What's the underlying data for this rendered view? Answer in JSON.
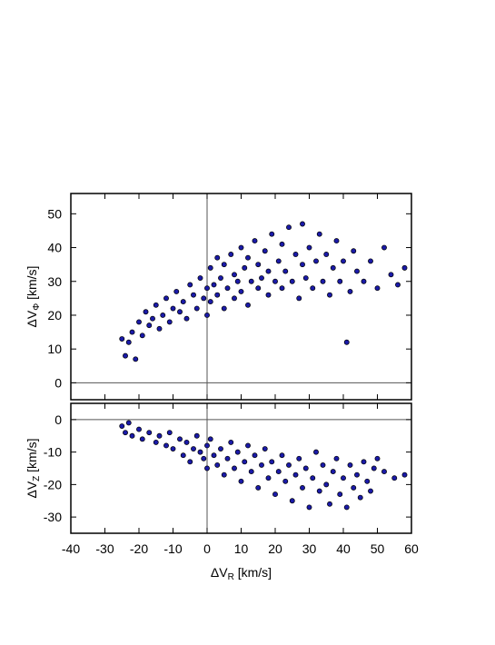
{
  "chart_data": [
    {
      "type": "scatter",
      "ylabel": [
        "ΔV",
        "Φ",
        " [km/s]"
      ],
      "xlim": [
        -40,
        60
      ],
      "xticks": [
        -40,
        -30,
        -20,
        -10,
        0,
        10,
        20,
        30,
        40,
        50,
        60
      ],
      "ylim": [
        -5,
        56
      ],
      "yticks": [
        0,
        10,
        20,
        30,
        40,
        50
      ],
      "zero_lines": true,
      "color": "#1a1aa8",
      "edgecolor": "#000000",
      "x": [
        -25,
        -24,
        -23,
        -22,
        -21,
        -20,
        -19,
        -18,
        -17,
        -16,
        -15,
        -14,
        -13,
        -12,
        -11,
        -10,
        -9,
        -8,
        -7,
        -6,
        -5,
        -4,
        -3,
        -2,
        -1,
        0,
        0,
        1,
        1,
        2,
        3,
        3,
        4,
        5,
        5,
        6,
        7,
        8,
        8,
        9,
        10,
        10,
        11,
        12,
        12,
        13,
        14,
        15,
        15,
        16,
        17,
        18,
        18,
        19,
        20,
        21,
        22,
        22,
        23,
        24,
        25,
        26,
        27,
        28,
        28,
        29,
        30,
        31,
        32,
        33,
        34,
        35,
        36,
        37,
        38,
        39,
        40,
        41,
        42,
        43,
        44,
        46,
        48,
        50,
        52,
        54,
        58,
        56
      ],
      "values": [
        13,
        8,
        12,
        15,
        7,
        18,
        14,
        21,
        17,
        19,
        23,
        16,
        20,
        25,
        18,
        22,
        27,
        21,
        24,
        19,
        29,
        26,
        22,
        31,
        25,
        28,
        20,
        34,
        24,
        29,
        37,
        26,
        31,
        22,
        35,
        28,
        38,
        25,
        32,
        30,
        40,
        27,
        34,
        23,
        37,
        30,
        42,
        28,
        35,
        31,
        39,
        26,
        33,
        44,
        30,
        36,
        28,
        41,
        33,
        46,
        30,
        38,
        25,
        35,
        47,
        31,
        40,
        28,
        36,
        44,
        30,
        38,
        26,
        34,
        42,
        30,
        36,
        12,
        27,
        39,
        33,
        30,
        36,
        28,
        40,
        32,
        34,
        29
      ]
    },
    {
      "type": "scatter",
      "ylabel": [
        "ΔV",
        "Z",
        " [km/s]"
      ],
      "xlabel": [
        "ΔV",
        "R",
        " [km/s]"
      ],
      "xlim": [
        -40,
        60
      ],
      "xticks": [
        -40,
        -30,
        -20,
        -10,
        0,
        10,
        20,
        30,
        40,
        50,
        60
      ],
      "ylim": [
        -35,
        5
      ],
      "yticks": [
        0,
        -10,
        -20,
        -30
      ],
      "zero_lines": true,
      "color": "#1a1aa8",
      "edgecolor": "#000000",
      "x": [
        -25,
        -24,
        -23,
        -22,
        -20,
        -19,
        -17,
        -15,
        -14,
        -12,
        -11,
        -10,
        -8,
        -7,
        -6,
        -5,
        -4,
        -3,
        -2,
        -1,
        0,
        0,
        1,
        2,
        3,
        4,
        5,
        6,
        7,
        8,
        9,
        10,
        11,
        12,
        13,
        14,
        15,
        16,
        17,
        18,
        19,
        20,
        21,
        22,
        23,
        24,
        25,
        26,
        27,
        28,
        29,
        30,
        31,
        32,
        33,
        34,
        35,
        36,
        37,
        38,
        39,
        40,
        41,
        42,
        43,
        44,
        45,
        46,
        47,
        48,
        49,
        50,
        52,
        55,
        58
      ],
      "values": [
        -2,
        -4,
        -1,
        -5,
        -3,
        -6,
        -4,
        -7,
        -5,
        -8,
        -4,
        -9,
        -6,
        -11,
        -7,
        -13,
        -9,
        -5,
        -10,
        -12,
        -8,
        -15,
        -6,
        -11,
        -14,
        -9,
        -17,
        -12,
        -7,
        -15,
        -10,
        -19,
        -13,
        -8,
        -16,
        -11,
        -21,
        -14,
        -9,
        -18,
        -13,
        -23,
        -16,
        -11,
        -19,
        -14,
        -25,
        -17,
        -12,
        -21,
        -15,
        -27,
        -18,
        -10,
        -22,
        -14,
        -20,
        -26,
        -16,
        -12,
        -23,
        -18,
        -27,
        -14,
        -21,
        -17,
        -24,
        -13,
        -19,
        -22,
        -15,
        -12,
        -16,
        -18,
        -17
      ]
    }
  ]
}
